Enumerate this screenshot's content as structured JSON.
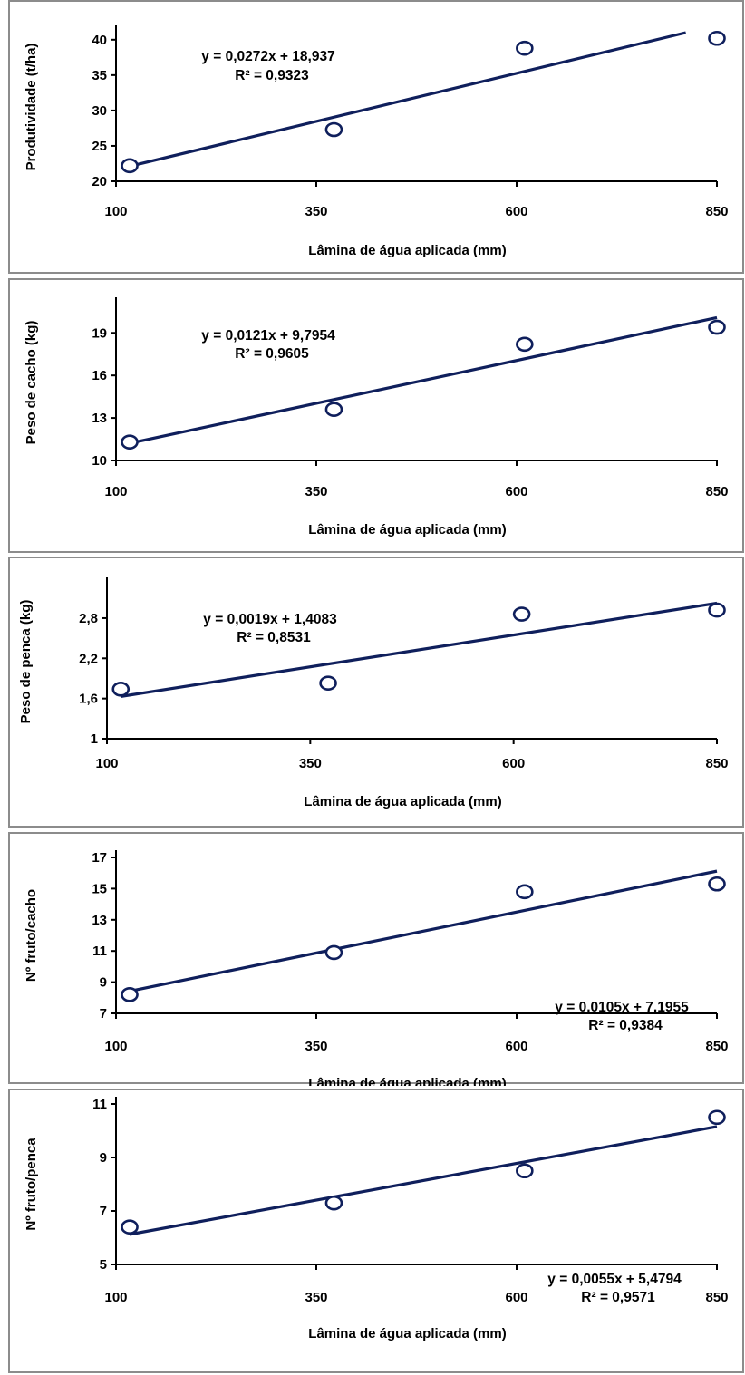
{
  "chart_data": [
    {
      "type": "scatter",
      "xlabel": "Lâmina de água aplicada (mm)",
      "ylabel": "Produtividade (t/ha)",
      "x_ticks": [
        "100",
        "350",
        "600",
        "850"
      ],
      "y_ticks": [
        "20",
        "25",
        "30",
        "35",
        "40"
      ],
      "xlim": [
        100,
        850
      ],
      "ylim": [
        20,
        41
      ],
      "points": [
        {
          "x": 117,
          "y": 22.2
        },
        {
          "x": 372,
          "y": 27.3
        },
        {
          "x": 610,
          "y": 38.8
        },
        {
          "x": 850,
          "y": 40.2
        }
      ],
      "trendline": {
        "slope": 0.0272,
        "intercept": 18.937
      },
      "equation": "y = 0,0272x  + 18,937",
      "r2": "R² = 0,9323",
      "color": "#0f1f5c"
    },
    {
      "type": "scatter",
      "xlabel": "Lâmina de água aplicada (mm)",
      "ylabel": "Peso de cacho (kg)",
      "x_ticks": [
        "100",
        "350",
        "600",
        "850"
      ],
      "y_ticks": [
        "10",
        "13",
        "16",
        "19"
      ],
      "xlim": [
        100,
        850
      ],
      "ylim": [
        10,
        21
      ],
      "points": [
        {
          "x": 117,
          "y": 11.3
        },
        {
          "x": 372,
          "y": 13.6
        },
        {
          "x": 610,
          "y": 18.2
        },
        {
          "x": 850,
          "y": 19.4
        }
      ],
      "trendline": {
        "slope": 0.0121,
        "intercept": 9.7954
      },
      "equation": "y = 0,0121x  + 9,7954",
      "r2": "R² = 0,9605",
      "color": "#0f1f5c"
    },
    {
      "type": "scatter",
      "xlabel": "Lâmina de água aplicada (mm)",
      "ylabel": "Peso de penca (kg)",
      "x_ticks": [
        "100",
        "350",
        "600",
        "850"
      ],
      "y_ticks": [
        "1",
        "1,6",
        "2,2",
        "2,8"
      ],
      "xlim": [
        100,
        850
      ],
      "ylim": [
        1,
        3.3
      ],
      "points": [
        {
          "x": 117,
          "y": 1.74
        },
        {
          "x": 372,
          "y": 1.83
        },
        {
          "x": 610,
          "y": 2.86
        },
        {
          "x": 850,
          "y": 2.92
        }
      ],
      "trendline": {
        "slope": 0.0019,
        "intercept": 1.4083
      },
      "equation": "y = 0,0019x  + 1,4083",
      "r2": "R² = 0,8531",
      "color": "#0f1f5c"
    },
    {
      "type": "scatter",
      "xlabel": "Lâmina de água aplicada (mm)",
      "ylabel": "Nº fruto/cacho",
      "x_ticks": [
        "100",
        "350",
        "600",
        "850"
      ],
      "y_ticks": [
        "7",
        "9",
        "11",
        "13",
        "15",
        "17"
      ],
      "xlim": [
        100,
        850
      ],
      "ylim": [
        7,
        17
      ],
      "points": [
        {
          "x": 117,
          "y": 8.2
        },
        {
          "x": 372,
          "y": 10.9
        },
        {
          "x": 610,
          "y": 14.8
        },
        {
          "x": 850,
          "y": 15.3
        }
      ],
      "trendline": {
        "slope": 0.0105,
        "intercept": 7.1955
      },
      "equation": "y = 0,0105x  + 7,1955",
      "r2": "R² = 0,9384",
      "color": "#0f1f5c"
    },
    {
      "type": "scatter",
      "xlabel": "Lâmina de água aplicada (mm)",
      "ylabel": "Nº fruto/penca",
      "x_ticks": [
        "100",
        "350",
        "600",
        "850"
      ],
      "y_ticks": [
        "5",
        "7",
        "9",
        "11"
      ],
      "xlim": [
        100,
        850
      ],
      "ylim": [
        5,
        11
      ],
      "points": [
        {
          "x": 117,
          "y": 6.4
        },
        {
          "x": 372,
          "y": 7.3
        },
        {
          "x": 610,
          "y": 8.5
        },
        {
          "x": 850,
          "y": 10.5
        }
      ],
      "trendline": {
        "slope": 0.0055,
        "intercept": 5.4794
      },
      "equation": "y = 0,0055x  + 5,4794",
      "r2": "R² = 0,9571",
      "color": "#0f1f5c"
    }
  ]
}
